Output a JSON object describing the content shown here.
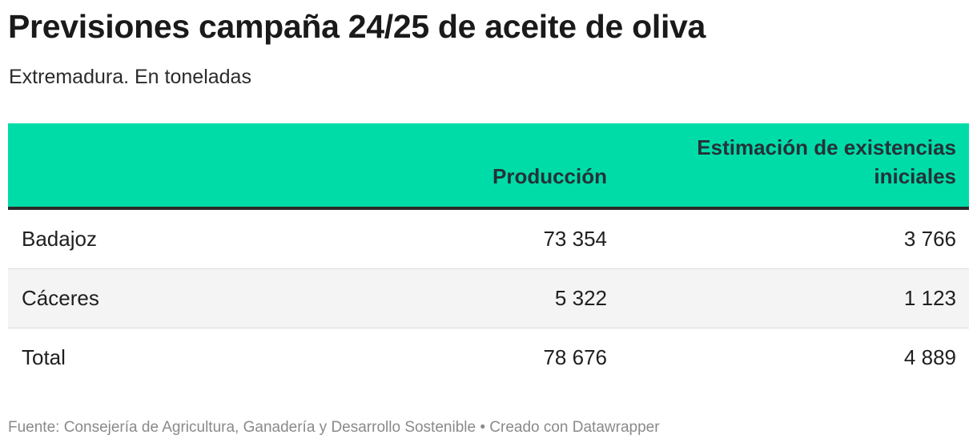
{
  "title": "Previsiones campaña 24/25 de aceite de oliva",
  "subtitle": "Extremadura. En toneladas",
  "colors": {
    "header_bg": "#00dca8",
    "header_text": "#253238",
    "header_rule": "#2a2a2a",
    "shaded_row": "#f4f4f4"
  },
  "chart_data": {
    "type": "table",
    "title": "Previsiones campaña 24/25 de aceite de oliva",
    "subtitle": "Extremadura. En toneladas",
    "columns": [
      "",
      "Producción",
      "Estimación de existencias iniciales"
    ],
    "rows": [
      {
        "name": "Badajoz",
        "produccion": "73 354",
        "existencias": "3 766"
      },
      {
        "name": "Cáceres",
        "produccion": "5 322",
        "existencias": "1 123"
      },
      {
        "name": "Total",
        "produccion": "78 676",
        "existencias": "4 889"
      }
    ]
  },
  "footer": {
    "source": "Fuente: Consejería de Agricultura, Ganadería y Desarrollo Sostenible",
    "separator": " • ",
    "credit": "Creado con Datawrapper"
  }
}
